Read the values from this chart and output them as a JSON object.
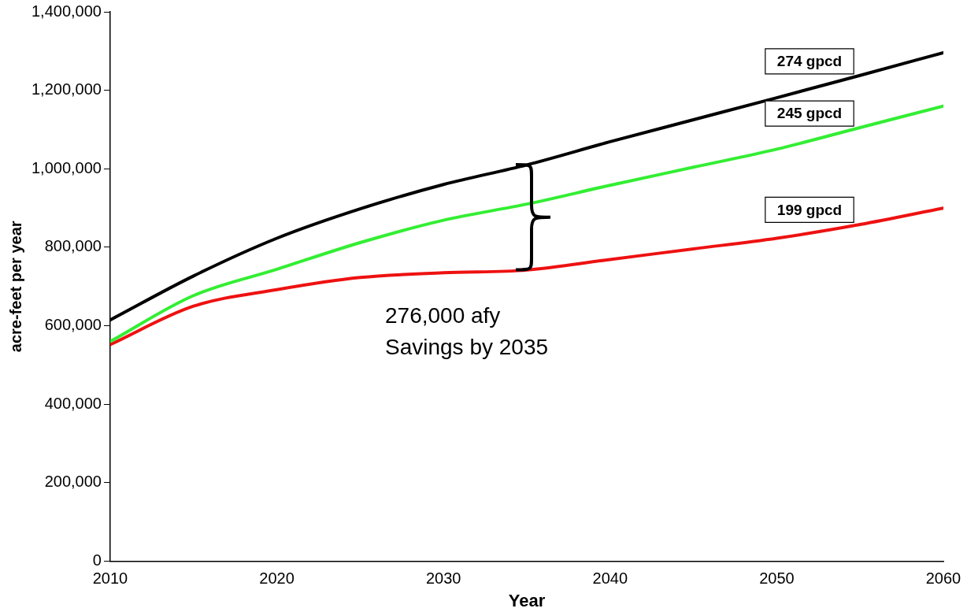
{
  "chart_data": {
    "type": "line",
    "xlabel": "Year",
    "ylabel": "acre-feet per year",
    "x": [
      2010,
      2015,
      2020,
      2025,
      2030,
      2035,
      2040,
      2045,
      2050,
      2055,
      2060
    ],
    "series": [
      {
        "name": "274 gpcd",
        "color": "#000000",
        "values": [
          615000,
          727000,
          823000,
          898000,
          960000,
          1010000,
          1069000,
          1125000,
          1181000,
          1238000,
          1296000
        ]
      },
      {
        "name": "245 gpcd",
        "color": "#33ee33",
        "values": [
          560000,
          677000,
          744000,
          812000,
          869000,
          910000,
          958000,
          1004000,
          1050000,
          1105000,
          1160000
        ]
      },
      {
        "name": "199 gpcd",
        "color": "#ee1111",
        "values": [
          552000,
          650000,
          692000,
          723000,
          735000,
          742000,
          769000,
          796000,
          823000,
          858000,
          900000
        ]
      }
    ],
    "xlim": [
      2010,
      2060
    ],
    "xticks": [
      2010,
      2020,
      2030,
      2040,
      2050,
      2060
    ],
    "ylim": [
      0,
      1400000
    ],
    "yticks": [
      {
        "value": 0,
        "label": "0"
      },
      {
        "value": 200000,
        "label": "200,000"
      },
      {
        "value": 400000,
        "label": "400,000"
      },
      {
        "value": 600000,
        "label": "600,000"
      },
      {
        "value": 800000,
        "label": "800,000"
      },
      {
        "value": 1000000,
        "label": "1,000,000"
      },
      {
        "value": 1200000,
        "label": "1,200,000"
      },
      {
        "value": 1400000,
        "label": "1,400,000"
      }
    ],
    "annotations": [
      {
        "text": "276,000 afy\nSavings by 2035",
        "x": 2035,
        "y": 742000
      }
    ],
    "grid": false,
    "legend": false,
    "marker": "none",
    "line_style": "solid"
  }
}
